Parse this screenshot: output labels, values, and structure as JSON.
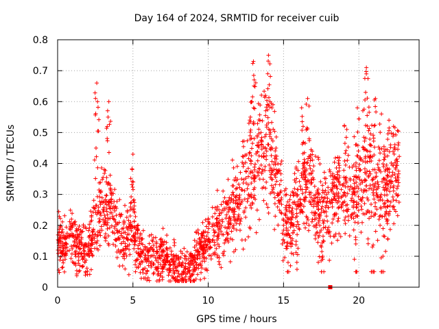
{
  "chart_data": {
    "type": "scatter",
    "title": "Day 164 of 2024, SRMTID for receiver cuib",
    "xlabel": "GPS time / hours",
    "ylabel": "SRMTID / TECUs",
    "xlim": [
      0,
      24
    ],
    "ylim": [
      0,
      0.8
    ],
    "x_ticks": [
      0,
      5,
      10,
      15,
      20
    ],
    "y_ticks": [
      0,
      0.1,
      0.2,
      0.3,
      0.4,
      0.5,
      0.6,
      0.7,
      0.8
    ],
    "x_tick_labels": [
      "0",
      "5",
      "10",
      "15",
      "20"
    ],
    "y_tick_labels": [
      "0",
      "0.1",
      "0.2",
      "0.3",
      "0.4",
      "0.5",
      "0.6",
      "0.7",
      "0.8"
    ],
    "grid": true,
    "marker": "plus",
    "color": "#ff0000",
    "series": [
      {
        "name": "SRMTID",
        "trend": [
          [
            0.0,
            0.15
          ],
          [
            0.5,
            0.14
          ],
          [
            1.0,
            0.16
          ],
          [
            1.5,
            0.13
          ],
          [
            2.0,
            0.11
          ],
          [
            2.5,
            0.2
          ],
          [
            3.0,
            0.25
          ],
          [
            3.5,
            0.25
          ],
          [
            4.0,
            0.17
          ],
          [
            4.5,
            0.15
          ],
          [
            5.0,
            0.2
          ],
          [
            5.5,
            0.1
          ],
          [
            6.0,
            0.09
          ],
          [
            6.5,
            0.09
          ],
          [
            7.0,
            0.1
          ],
          [
            7.5,
            0.08
          ],
          [
            8.0,
            0.06
          ],
          [
            8.5,
            0.05
          ],
          [
            9.0,
            0.07
          ],
          [
            9.5,
            0.12
          ],
          [
            10.0,
            0.15
          ],
          [
            10.5,
            0.17
          ],
          [
            11.0,
            0.2
          ],
          [
            11.5,
            0.25
          ],
          [
            12.0,
            0.3
          ],
          [
            12.5,
            0.32
          ],
          [
            13.0,
            0.38
          ],
          [
            13.5,
            0.42
          ],
          [
            14.0,
            0.43
          ],
          [
            14.5,
            0.35
          ],
          [
            15.0,
            0.22
          ],
          [
            15.5,
            0.2
          ],
          [
            16.0,
            0.28
          ],
          [
            16.5,
            0.35
          ],
          [
            17.0,
            0.28
          ],
          [
            17.5,
            0.22
          ],
          [
            18.0,
            0.25
          ],
          [
            18.5,
            0.3
          ],
          [
            19.0,
            0.32
          ],
          [
            19.5,
            0.3
          ],
          [
            20.0,
            0.33
          ],
          [
            20.5,
            0.38
          ],
          [
            21.0,
            0.35
          ],
          [
            21.5,
            0.32
          ],
          [
            22.0,
            0.33
          ],
          [
            22.5,
            0.38
          ]
        ],
        "spikes": [
          [
            2.6,
            0.66
          ],
          [
            2.65,
            0.6
          ],
          [
            3.4,
            0.6
          ],
          [
            3.35,
            0.55
          ],
          [
            5.0,
            0.43
          ],
          [
            4.95,
            0.38
          ],
          [
            13.0,
            0.73
          ],
          [
            13.05,
            0.67
          ],
          [
            12.9,
            0.6
          ],
          [
            14.0,
            0.75
          ],
          [
            13.95,
            0.69
          ],
          [
            14.1,
            0.6
          ],
          [
            16.6,
            0.61
          ],
          [
            16.2,
            0.58
          ],
          [
            16.3,
            0.52
          ],
          [
            16.7,
            0.48
          ],
          [
            19.9,
            0.58
          ],
          [
            20.5,
            0.71
          ],
          [
            20.45,
            0.63
          ],
          [
            21.1,
            0.61
          ],
          [
            21.5,
            0.56
          ],
          [
            22.0,
            0.54
          ],
          [
            22.3,
            0.52
          ],
          [
            22.1,
            0.46
          ],
          [
            17.3,
            0.42
          ],
          [
            18.6,
            0.42
          ],
          [
            19.2,
            0.51
          ],
          [
            13.8,
            0.62
          ],
          [
            14.3,
            0.59
          ],
          [
            12.8,
            0.55
          ],
          [
            13.5,
            0.5
          ],
          [
            14.5,
            0.45
          ],
          [
            16.9,
            0.44
          ],
          [
            2.55,
            0.45
          ],
          [
            3.1,
            0.38
          ],
          [
            3.5,
            0.32
          ],
          [
            7.0,
            0.19
          ],
          [
            9.8,
            0.18
          ],
          [
            10.6,
            0.2
          ],
          [
            11.3,
            0.27
          ],
          [
            15.9,
            0.17
          ],
          [
            17.6,
            0.09
          ],
          [
            21.6,
            0.1
          ],
          [
            15.3,
            0.08
          ],
          [
            19.8,
            0.14
          ],
          [
            20.9,
            0.13
          ]
        ],
        "lone_point": [
          18.1,
          0.0
        ]
      }
    ]
  }
}
